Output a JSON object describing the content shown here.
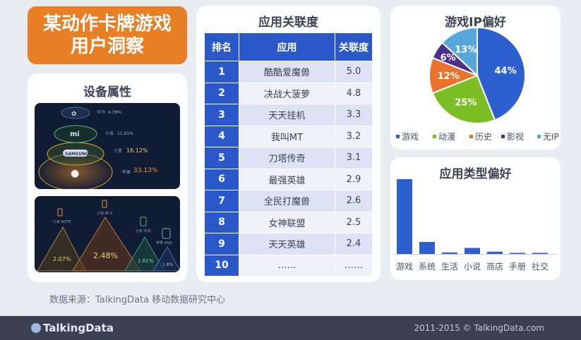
{
  "title_card": {
    "line1": "某动作卡牌游戏",
    "line2": "用户洞察"
  },
  "device_card": {
    "title": "设备属性",
    "panel1": {
      "brands": [
        "Huawei",
        "mi",
        "SAMSUNG",
        "Apple"
      ],
      "labels": [
        "华为",
        "小米",
        "三星",
        "苹果"
      ],
      "percents": [
        "4.39%",
        "11.91%",
        "16.12%",
        "33.13%"
      ]
    },
    "panel2": {
      "labels": [
        "小米 NOTE",
        "小米 MI 3",
        "小米 红米",
        "苹果 iPAD"
      ],
      "percents": [
        "2.07%",
        "2.48%",
        "1.81%",
        "1.8%"
      ]
    }
  },
  "table_card": {
    "title": "应用关联度",
    "headers": [
      "排名",
      "应用",
      "关联度"
    ],
    "rows": [
      {
        "rank": "1",
        "app": "酷酷爱魔兽",
        "score": "5.0"
      },
      {
        "rank": "2",
        "app": "决战大菠萝",
        "score": "4.8"
      },
      {
        "rank": "3",
        "app": "天天挂机",
        "score": "3.3"
      },
      {
        "rank": "4",
        "app": "我叫MT",
        "score": "3.2"
      },
      {
        "rank": "5",
        "app": "刀塔传奇",
        "score": "3.1"
      },
      {
        "rank": "6",
        "app": "最强英雄",
        "score": "2.9"
      },
      {
        "rank": "7",
        "app": "全民打魔兽",
        "score": "2.6"
      },
      {
        "rank": "8",
        "app": "女神联盟",
        "score": "2.5"
      },
      {
        "rank": "9",
        "app": "天天英雄",
        "score": "2.4"
      },
      {
        "rank": "10",
        "app": "……",
        "score": "……"
      }
    ]
  },
  "chart_data": [
    {
      "type": "pie",
      "title": "游戏IP偏好",
      "legend_position": "bottom",
      "slices": [
        {
          "name": "游戏",
          "value": 44,
          "label": "44%",
          "color": "#2c5fcf"
        },
        {
          "name": "动漫",
          "value": 25,
          "label": "25%",
          "color": "#7cbf24"
        },
        {
          "name": "历史",
          "value": 12,
          "label": "12%",
          "color": "#e9732a"
        },
        {
          "name": "影视",
          "value": 6,
          "label": "6%",
          "color": "#4a2f8c"
        },
        {
          "name": "无IP",
          "value": 13,
          "label": "13%",
          "color": "#58a7dc"
        }
      ]
    },
    {
      "type": "bar",
      "title": "应用类型偏好",
      "categories": [
        "游戏",
        "系统",
        "生活",
        "小说",
        "商店",
        "手册",
        "社交"
      ],
      "values": [
        100,
        16,
        2,
        8,
        3,
        1,
        1
      ],
      "ylim": [
        0,
        100
      ],
      "color": "#2c5fcf"
    }
  ],
  "source": "数据来源：TalkingData 移动数据研究中心",
  "footer": {
    "brand": "TalkingData",
    "copyright": "2011-2015 © TalkingData.com"
  }
}
